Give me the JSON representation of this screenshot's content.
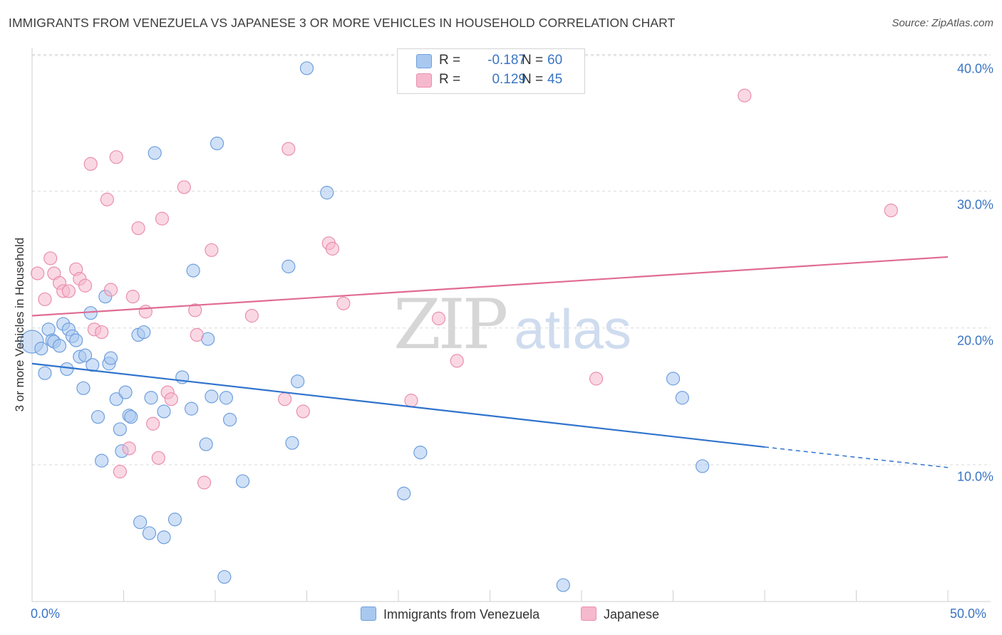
{
  "header": {
    "title": "IMMIGRANTS FROM VENEZUELA VS JAPANESE 3 OR MORE VEHICLES IN HOUSEHOLD CORRELATION CHART",
    "source": "Source: ZipAtlas.com"
  },
  "watermark": {
    "zip": "ZIP",
    "atlas": "atlas"
  },
  "colors": {
    "blue_fill": "#a9c8f0",
    "blue_stroke": "#6f9fdc",
    "blue_line": "#2f73cc",
    "pink_fill": "#f6b8cc",
    "pink_stroke": "#e98fae",
    "pink_line": "#e06b94",
    "grid": "#d9d9d9",
    "tick_text": "#3a75c4"
  },
  "legend": {
    "rows": [
      {
        "r_label": "R =",
        "r_value": "-0.187",
        "n_label": "N =",
        "n_value": "60"
      },
      {
        "r_label": "R =",
        "r_value": "0.129",
        "n_label": "N =",
        "n_value": "45"
      }
    ],
    "bottom": [
      "Immigrants from Venezuela",
      "Japanese"
    ]
  },
  "chart_data": {
    "type": "scatter",
    "title": "IMMIGRANTS FROM VENEZUELA VS JAPANESE 3 OR MORE VEHICLES IN HOUSEHOLD CORRELATION CHART",
    "xlabel": "",
    "ylabel": "3 or more Vehicles in Household",
    "xlim": [
      0,
      50
    ],
    "ylim": [
      0,
      40.5
    ],
    "x_tick_labels": {
      "min": "0.0%",
      "max": "50.0%"
    },
    "y_ticks": [
      {
        "value": 10,
        "label": "10.0%"
      },
      {
        "value": 20,
        "label": "20.0%"
      },
      {
        "value": 30,
        "label": "30.0%"
      },
      {
        "value": 40,
        "label": "40.0%"
      }
    ],
    "series": [
      {
        "name": "Immigrants from Venezuela",
        "r": -0.187,
        "n": 60,
        "trend": {
          "x0": 0,
          "y0": 17.4,
          "x1": 40,
          "y1": 11.3,
          "dash_to_x": 50,
          "dash_to_y": 9.8
        },
        "points": [
          {
            "x": 0.0,
            "y": 19.0,
            "big": true
          },
          {
            "x": 0.5,
            "y": 18.5
          },
          {
            "x": 0.7,
            "y": 16.7
          },
          {
            "x": 0.9,
            "y": 19.9
          },
          {
            "x": 1.1,
            "y": 19.1
          },
          {
            "x": 1.2,
            "y": 19.0
          },
          {
            "x": 1.5,
            "y": 18.7
          },
          {
            "x": 1.7,
            "y": 20.3
          },
          {
            "x": 1.9,
            "y": 17.0
          },
          {
            "x": 2.0,
            "y": 19.9
          },
          {
            "x": 2.2,
            "y": 19.4
          },
          {
            "x": 2.4,
            "y": 19.1
          },
          {
            "x": 2.6,
            "y": 17.9
          },
          {
            "x": 2.8,
            "y": 15.6
          },
          {
            "x": 2.9,
            "y": 18.0
          },
          {
            "x": 3.2,
            "y": 21.1
          },
          {
            "x": 3.3,
            "y": 17.3
          },
          {
            "x": 3.6,
            "y": 13.5
          },
          {
            "x": 3.8,
            "y": 10.3
          },
          {
            "x": 4.0,
            "y": 22.3
          },
          {
            "x": 4.2,
            "y": 17.4
          },
          {
            "x": 4.3,
            "y": 17.8
          },
          {
            "x": 4.6,
            "y": 14.8
          },
          {
            "x": 4.8,
            "y": 12.6
          },
          {
            "x": 4.9,
            "y": 11.0
          },
          {
            "x": 5.1,
            "y": 15.3
          },
          {
            "x": 5.3,
            "y": 13.6
          },
          {
            "x": 5.4,
            "y": 13.5
          },
          {
            "x": 5.8,
            "y": 19.5
          },
          {
            "x": 5.9,
            "y": 5.8
          },
          {
            "x": 6.1,
            "y": 19.7
          },
          {
            "x": 6.4,
            "y": 5.0
          },
          {
            "x": 6.5,
            "y": 14.9
          },
          {
            "x": 6.7,
            "y": 32.8
          },
          {
            "x": 7.2,
            "y": 13.9
          },
          {
            "x": 7.2,
            "y": 4.7
          },
          {
            "x": 7.8,
            "y": 6.0
          },
          {
            "x": 8.2,
            "y": 16.4
          },
          {
            "x": 8.7,
            "y": 14.1
          },
          {
            "x": 8.8,
            "y": 24.2
          },
          {
            "x": 9.5,
            "y": 11.5
          },
          {
            "x": 9.6,
            "y": 19.2
          },
          {
            "x": 9.8,
            "y": 15.0
          },
          {
            "x": 10.1,
            "y": 33.5
          },
          {
            "x": 10.5,
            "y": 1.8
          },
          {
            "x": 10.6,
            "y": 14.9
          },
          {
            "x": 10.8,
            "y": 13.3
          },
          {
            "x": 11.5,
            "y": 8.8
          },
          {
            "x": 14.0,
            "y": 24.5
          },
          {
            "x": 14.2,
            "y": 11.6
          },
          {
            "x": 14.5,
            "y": 16.1
          },
          {
            "x": 15.0,
            "y": 39.0
          },
          {
            "x": 16.1,
            "y": 29.9
          },
          {
            "x": 20.3,
            "y": 7.9
          },
          {
            "x": 21.2,
            "y": 10.9
          },
          {
            "x": 29.0,
            "y": 1.2
          },
          {
            "x": 35.0,
            "y": 16.3
          },
          {
            "x": 35.5,
            "y": 14.9
          },
          {
            "x": 36.6,
            "y": 9.9
          }
        ]
      },
      {
        "name": "Japanese",
        "r": 0.129,
        "n": 45,
        "trend": {
          "x0": 0,
          "y0": 20.9,
          "x1": 50,
          "y1": 25.2
        },
        "points": [
          {
            "x": 0.3,
            "y": 24.0
          },
          {
            "x": 0.7,
            "y": 22.1
          },
          {
            "x": 1.0,
            "y": 25.1
          },
          {
            "x": 1.2,
            "y": 24.0
          },
          {
            "x": 1.5,
            "y": 23.3
          },
          {
            "x": 1.7,
            "y": 22.7
          },
          {
            "x": 2.0,
            "y": 22.7
          },
          {
            "x": 2.4,
            "y": 24.3
          },
          {
            "x": 2.6,
            "y": 23.6
          },
          {
            "x": 2.9,
            "y": 23.1
          },
          {
            "x": 3.2,
            "y": 32.0
          },
          {
            "x": 3.4,
            "y": 19.9
          },
          {
            "x": 3.8,
            "y": 19.7
          },
          {
            "x": 4.1,
            "y": 29.4
          },
          {
            "x": 4.3,
            "y": 22.8
          },
          {
            "x": 4.6,
            "y": 32.5
          },
          {
            "x": 4.8,
            "y": 9.5
          },
          {
            "x": 5.3,
            "y": 11.2
          },
          {
            "x": 5.5,
            "y": 22.3
          },
          {
            "x": 5.8,
            "y": 27.3
          },
          {
            "x": 6.2,
            "y": 21.2
          },
          {
            "x": 6.6,
            "y": 13.0
          },
          {
            "x": 6.9,
            "y": 10.5
          },
          {
            "x": 7.1,
            "y": 28.0
          },
          {
            "x": 7.4,
            "y": 15.3
          },
          {
            "x": 7.6,
            "y": 14.8
          },
          {
            "x": 8.3,
            "y": 30.3
          },
          {
            "x": 8.9,
            "y": 21.3
          },
          {
            "x": 9.0,
            "y": 19.5
          },
          {
            "x": 9.4,
            "y": 8.7
          },
          {
            "x": 9.8,
            "y": 25.7
          },
          {
            "x": 12.0,
            "y": 20.9
          },
          {
            "x": 14.0,
            "y": 33.1
          },
          {
            "x": 13.8,
            "y": 14.8
          },
          {
            "x": 14.8,
            "y": 13.9
          },
          {
            "x": 16.2,
            "y": 26.2
          },
          {
            "x": 16.4,
            "y": 25.8
          },
          {
            "x": 17.0,
            "y": 21.8
          },
          {
            "x": 20.7,
            "y": 14.7
          },
          {
            "x": 22.2,
            "y": 20.7
          },
          {
            "x": 23.2,
            "y": 17.6
          },
          {
            "x": 30.8,
            "y": 16.3
          },
          {
            "x": 38.9,
            "y": 37.0
          },
          {
            "x": 46.9,
            "y": 28.6
          }
        ]
      }
    ]
  }
}
